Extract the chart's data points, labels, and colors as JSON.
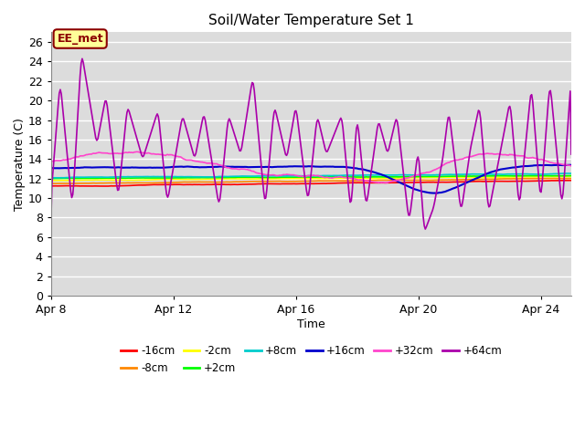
{
  "title": "Soil/Water Temperature Set 1",
  "xlabel": "Time",
  "ylabel": "Temperature (C)",
  "ylim": [
    0,
    27
  ],
  "yticks": [
    0,
    2,
    4,
    6,
    8,
    10,
    12,
    14,
    16,
    18,
    20,
    22,
    24,
    26
  ],
  "xtick_labels": [
    "Apr 8",
    "Apr 12",
    "Apr 16",
    "Apr 20",
    "Apr 24"
  ],
  "xtick_positions": [
    0,
    4,
    8,
    12,
    16
  ],
  "annotation_text": "EE_met",
  "series": {
    "-16cm": {
      "color": "#ff0000",
      "lw": 1.2
    },
    "-8cm": {
      "color": "#ff8800",
      "lw": 1.2
    },
    "-2cm": {
      "color": "#ffff00",
      "lw": 1.2
    },
    "+2cm": {
      "color": "#00ff00",
      "lw": 1.2
    },
    "+8cm": {
      "color": "#00cccc",
      "lw": 1.2
    },
    "+16cm": {
      "color": "#0000cc",
      "lw": 1.5
    },
    "+32cm": {
      "color": "#ff44cc",
      "lw": 1.2
    },
    "+64cm": {
      "color": "#aa00aa",
      "lw": 1.2
    }
  },
  "legend_order": [
    "-16cm",
    "-8cm",
    "-2cm",
    "+2cm",
    "+8cm",
    "+16cm",
    "+32cm",
    "+64cm"
  ]
}
